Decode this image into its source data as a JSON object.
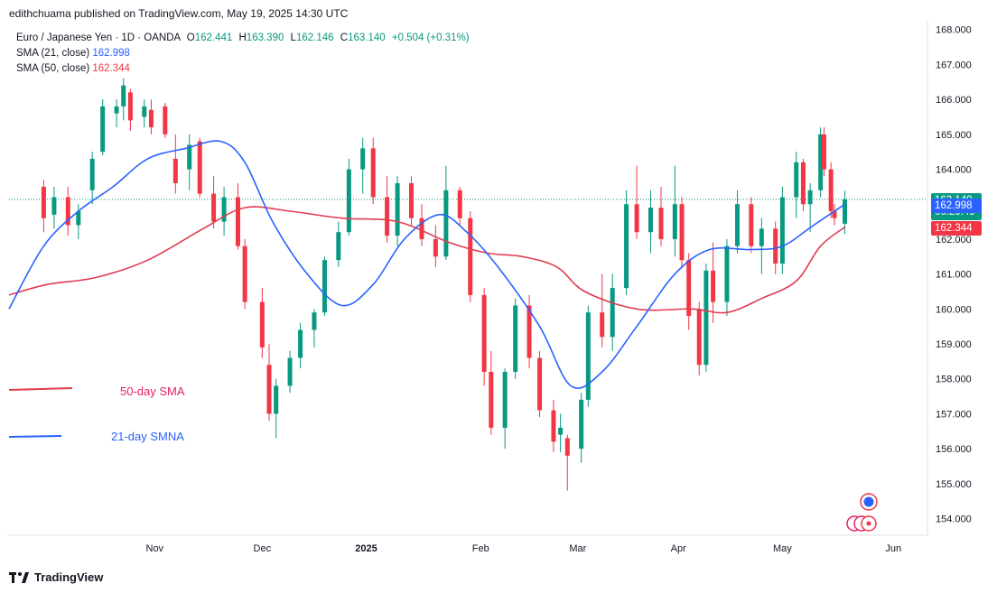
{
  "header": {
    "published_by": "edithchuama published on TradingView.com, May 19, 2025 14:30 UTC"
  },
  "legend": {
    "symbol": "Euro / Japanese Yen · 1D · OANDA",
    "open_label": "O",
    "open": "162.441",
    "high_label": "H",
    "high": "163.390",
    "low_label": "L",
    "low": "162.146",
    "close_label": "C",
    "close": "163.140",
    "change": "+0.504 (+0.31%)",
    "sma21_label": "SMA (21, close)",
    "sma21_value": "162.998",
    "sma50_label": "SMA (50, close)",
    "sma50_value": "162.344"
  },
  "annotations": {
    "sma50": "50-day SMA",
    "sma21": "21-day SMNA"
  },
  "price_tags": {
    "last": "163.140",
    "countdown": "06:29:49",
    "sma21": "162.998",
    "sma50": "162.344"
  },
  "footer": {
    "brand": "TradingView"
  },
  "colors": {
    "up": "#089981",
    "down": "#f23645",
    "sma21": "#2962ff",
    "sma50": "#e03c50"
  },
  "chart_data": {
    "type": "candlestick",
    "title": "Euro / Japanese Yen · 1D · OANDA",
    "y_ticks": [
      "154.000",
      "155.000",
      "156.000",
      "157.000",
      "158.000",
      "159.000",
      "160.000",
      "161.000",
      "162.000",
      "163.000",
      "164.000",
      "165.000",
      "166.000",
      "167.000",
      "168.000"
    ],
    "ylim": [
      153.6,
      168.2
    ],
    "x_ticks": [
      "Nov",
      "Dec",
      "2025",
      "Feb",
      "Mar",
      "Apr",
      "May",
      "Jun"
    ],
    "x_tick_dates": [
      "2024-11-01",
      "2024-12-02",
      "2025-01-01",
      "2025-02-03",
      "2025-03-03",
      "2025-04-01",
      "2025-05-01",
      "2025-06-02"
    ],
    "xlim": [
      "2024-09-20",
      "2025-06-10"
    ],
    "last_price_line": 163.14,
    "sma21": [
      {
        "d": "2024-09-20",
        "v": 160.0
      },
      {
        "d": "2024-09-30",
        "v": 161.8
      },
      {
        "d": "2024-10-10",
        "v": 162.8
      },
      {
        "d": "2024-10-20",
        "v": 163.5
      },
      {
        "d": "2024-10-30",
        "v": 164.3
      },
      {
        "d": "2024-11-10",
        "v": 164.6
      },
      {
        "d": "2024-11-20",
        "v": 164.8
      },
      {
        "d": "2024-11-27",
        "v": 164.2
      },
      {
        "d": "2024-12-05",
        "v": 162.5
      },
      {
        "d": "2024-12-15",
        "v": 161.0
      },
      {
        "d": "2024-12-25",
        "v": 160.1
      },
      {
        "d": "2025-01-03",
        "v": 160.7
      },
      {
        "d": "2025-01-12",
        "v": 162.0
      },
      {
        "d": "2025-01-22",
        "v": 162.7
      },
      {
        "d": "2025-01-30",
        "v": 162.2
      },
      {
        "d": "2025-02-08",
        "v": 161.2
      },
      {
        "d": "2025-02-20",
        "v": 159.5
      },
      {
        "d": "2025-03-01",
        "v": 157.8
      },
      {
        "d": "2025-03-10",
        "v": 158.2
      },
      {
        "d": "2025-03-20",
        "v": 159.5
      },
      {
        "d": "2025-03-31",
        "v": 161.0
      },
      {
        "d": "2025-04-10",
        "v": 161.7
      },
      {
        "d": "2025-04-22",
        "v": 161.7
      },
      {
        "d": "2025-05-01",
        "v": 161.8
      },
      {
        "d": "2025-05-10",
        "v": 162.4
      },
      {
        "d": "2025-05-19",
        "v": 162.998
      }
    ],
    "sma50": [
      {
        "d": "2024-09-20",
        "v": 160.4
      },
      {
        "d": "2024-10-01",
        "v": 160.7
      },
      {
        "d": "2024-10-15",
        "v": 160.9
      },
      {
        "d": "2024-10-30",
        "v": 161.4
      },
      {
        "d": "2024-11-15",
        "v": 162.3
      },
      {
        "d": "2024-11-27",
        "v": 162.9
      },
      {
        "d": "2024-12-10",
        "v": 162.8
      },
      {
        "d": "2024-12-25",
        "v": 162.6
      },
      {
        "d": "2025-01-10",
        "v": 162.5
      },
      {
        "d": "2025-01-25",
        "v": 161.9
      },
      {
        "d": "2025-02-05",
        "v": 161.6
      },
      {
        "d": "2025-02-15",
        "v": 161.5
      },
      {
        "d": "2025-02-25",
        "v": 161.2
      },
      {
        "d": "2025-03-05",
        "v": 160.5
      },
      {
        "d": "2025-03-20",
        "v": 160.0
      },
      {
        "d": "2025-04-05",
        "v": 160.0
      },
      {
        "d": "2025-04-15",
        "v": 159.9
      },
      {
        "d": "2025-04-25",
        "v": 160.3
      },
      {
        "d": "2025-05-05",
        "v": 160.8
      },
      {
        "d": "2025-05-12",
        "v": 161.8
      },
      {
        "d": "2025-05-19",
        "v": 162.344
      }
    ],
    "candles": [
      {
        "d": "2024-09-30",
        "o": 163.5,
        "h": 163.7,
        "l": 162.2,
        "c": 162.6
      },
      {
        "d": "2024-10-03",
        "o": 162.7,
        "h": 163.5,
        "l": 162.3,
        "c": 163.2
      },
      {
        "d": "2024-10-07",
        "o": 163.2,
        "h": 163.5,
        "l": 162.1,
        "c": 162.4
      },
      {
        "d": "2024-10-10",
        "o": 162.4,
        "h": 163.0,
        "l": 162.0,
        "c": 162.8
      },
      {
        "d": "2024-10-14",
        "o": 163.4,
        "h": 164.5,
        "l": 163.0,
        "c": 164.3
      },
      {
        "d": "2024-10-17",
        "o": 164.5,
        "h": 166.0,
        "l": 164.4,
        "c": 165.8
      },
      {
        "d": "2024-10-21",
        "o": 165.6,
        "h": 166.0,
        "l": 165.2,
        "c": 165.8
      },
      {
        "d": "2024-10-23",
        "o": 165.8,
        "h": 166.6,
        "l": 165.4,
        "c": 166.4
      },
      {
        "d": "2024-10-25",
        "o": 166.2,
        "h": 166.3,
        "l": 165.1,
        "c": 165.4
      },
      {
        "d": "2024-10-29",
        "o": 165.5,
        "h": 166.0,
        "l": 165.2,
        "c": 165.8
      },
      {
        "d": "2024-10-31",
        "o": 165.7,
        "h": 166.0,
        "l": 165.0,
        "c": 165.2
      },
      {
        "d": "2024-11-04",
        "o": 165.8,
        "h": 165.9,
        "l": 164.9,
        "c": 165.0
      },
      {
        "d": "2024-11-07",
        "o": 164.3,
        "h": 165.0,
        "l": 163.3,
        "c": 163.6
      },
      {
        "d": "2024-11-11",
        "o": 164.0,
        "h": 165.0,
        "l": 163.4,
        "c": 164.7
      },
      {
        "d": "2024-11-14",
        "o": 164.8,
        "h": 164.9,
        "l": 163.2,
        "c": 163.3
      },
      {
        "d": "2024-11-18",
        "o": 163.3,
        "h": 163.8,
        "l": 162.3,
        "c": 162.5
      },
      {
        "d": "2024-11-21",
        "o": 162.5,
        "h": 163.5,
        "l": 162.1,
        "c": 163.2
      },
      {
        "d": "2024-11-25",
        "o": 163.2,
        "h": 163.6,
        "l": 161.7,
        "c": 161.8
      },
      {
        "d": "2024-11-27",
        "o": 161.8,
        "h": 162.0,
        "l": 160.0,
        "c": 160.2
      },
      {
        "d": "2024-12-02",
        "o": 160.2,
        "h": 160.6,
        "l": 158.6,
        "c": 158.9
      },
      {
        "d": "2024-12-04",
        "o": 158.4,
        "h": 159.0,
        "l": 156.8,
        "c": 157.0
      },
      {
        "d": "2024-12-06",
        "o": 157.0,
        "h": 158.0,
        "l": 156.3,
        "c": 157.8
      },
      {
        "d": "2024-12-10",
        "o": 157.8,
        "h": 158.8,
        "l": 157.6,
        "c": 158.6
      },
      {
        "d": "2024-12-13",
        "o": 158.6,
        "h": 159.6,
        "l": 158.3,
        "c": 159.4
      },
      {
        "d": "2024-12-17",
        "o": 159.4,
        "h": 160.0,
        "l": 158.9,
        "c": 159.9
      },
      {
        "d": "2024-12-20",
        "o": 159.9,
        "h": 161.5,
        "l": 159.8,
        "c": 161.4
      },
      {
        "d": "2024-12-24",
        "o": 161.4,
        "h": 162.5,
        "l": 161.2,
        "c": 162.2
      },
      {
        "d": "2024-12-27",
        "o": 162.2,
        "h": 164.3,
        "l": 162.1,
        "c": 164.0
      },
      {
        "d": "2024-12-31",
        "o": 164.0,
        "h": 164.9,
        "l": 163.3,
        "c": 164.6
      },
      {
        "d": "2025-01-03",
        "o": 164.6,
        "h": 164.9,
        "l": 163.0,
        "c": 163.2
      },
      {
        "d": "2025-01-07",
        "o": 163.2,
        "h": 163.8,
        "l": 161.9,
        "c": 162.1
      },
      {
        "d": "2025-01-10",
        "o": 162.1,
        "h": 163.8,
        "l": 161.8,
        "c": 163.6
      },
      {
        "d": "2025-01-14",
        "o": 163.6,
        "h": 163.8,
        "l": 162.4,
        "c": 162.6
      },
      {
        "d": "2025-01-17",
        "o": 162.6,
        "h": 163.0,
        "l": 161.8,
        "c": 162.0
      },
      {
        "d": "2025-01-21",
        "o": 162.0,
        "h": 162.4,
        "l": 161.2,
        "c": 161.5
      },
      {
        "d": "2025-01-24",
        "o": 161.5,
        "h": 164.1,
        "l": 161.4,
        "c": 163.4
      },
      {
        "d": "2025-01-28",
        "o": 163.4,
        "h": 163.5,
        "l": 162.4,
        "c": 162.6
      },
      {
        "d": "2025-01-31",
        "o": 162.6,
        "h": 162.8,
        "l": 160.2,
        "c": 160.4
      },
      {
        "d": "2025-02-04",
        "o": 160.4,
        "h": 160.6,
        "l": 157.8,
        "c": 158.2
      },
      {
        "d": "2025-02-06",
        "o": 158.2,
        "h": 158.8,
        "l": 156.4,
        "c": 156.6
      },
      {
        "d": "2025-02-10",
        "o": 156.6,
        "h": 158.3,
        "l": 156.0,
        "c": 158.2
      },
      {
        "d": "2025-02-13",
        "o": 158.2,
        "h": 160.3,
        "l": 158.0,
        "c": 160.1
      },
      {
        "d": "2025-02-17",
        "o": 160.1,
        "h": 160.4,
        "l": 158.3,
        "c": 158.6
      },
      {
        "d": "2025-02-20",
        "o": 158.6,
        "h": 158.8,
        "l": 156.9,
        "c": 157.1
      },
      {
        "d": "2025-02-24",
        "o": 157.1,
        "h": 157.4,
        "l": 155.9,
        "c": 156.2
      },
      {
        "d": "2025-02-26",
        "o": 156.4,
        "h": 157.0,
        "l": 155.9,
        "c": 156.6
      },
      {
        "d": "2025-02-28",
        "o": 156.3,
        "h": 156.4,
        "l": 154.8,
        "c": 155.8
      },
      {
        "d": "2025-03-04",
        "o": 156.0,
        "h": 157.6,
        "l": 155.6,
        "c": 157.4
      },
      {
        "d": "2025-03-06",
        "o": 157.4,
        "h": 160.1,
        "l": 157.2,
        "c": 159.9
      },
      {
        "d": "2025-03-10",
        "o": 159.9,
        "h": 161.0,
        "l": 158.9,
        "c": 159.2
      },
      {
        "d": "2025-03-13",
        "o": 159.2,
        "h": 161.0,
        "l": 158.8,
        "c": 160.6
      },
      {
        "d": "2025-03-17",
        "o": 160.6,
        "h": 163.4,
        "l": 160.4,
        "c": 163.0
      },
      {
        "d": "2025-03-20",
        "o": 163.0,
        "h": 164.1,
        "l": 162.0,
        "c": 162.2
      },
      {
        "d": "2025-03-24",
        "o": 162.2,
        "h": 163.4,
        "l": 161.6,
        "c": 162.9
      },
      {
        "d": "2025-03-27",
        "o": 162.9,
        "h": 163.5,
        "l": 161.8,
        "c": 162.0
      },
      {
        "d": "2025-03-31",
        "o": 162.0,
        "h": 164.1,
        "l": 161.5,
        "c": 163.0
      },
      {
        "d": "2025-04-02",
        "o": 163.0,
        "h": 163.2,
        "l": 161.2,
        "c": 161.4
      },
      {
        "d": "2025-04-04",
        "o": 161.4,
        "h": 161.6,
        "l": 159.4,
        "c": 159.8
      },
      {
        "d": "2025-04-07",
        "o": 160.0,
        "h": 160.2,
        "l": 158.1,
        "c": 158.4
      },
      {
        "d": "2025-04-09",
        "o": 158.4,
        "h": 161.3,
        "l": 158.2,
        "c": 161.1
      },
      {
        "d": "2025-04-11",
        "o": 161.1,
        "h": 161.9,
        "l": 159.6,
        "c": 160.2
      },
      {
        "d": "2025-04-15",
        "o": 160.2,
        "h": 162.0,
        "l": 159.8,
        "c": 161.8
      },
      {
        "d": "2025-04-18",
        "o": 161.8,
        "h": 163.4,
        "l": 161.6,
        "c": 163.0
      },
      {
        "d": "2025-04-22",
        "o": 163.0,
        "h": 163.2,
        "l": 161.6,
        "c": 161.8
      },
      {
        "d": "2025-04-25",
        "o": 161.8,
        "h": 162.6,
        "l": 161.0,
        "c": 162.3
      },
      {
        "d": "2025-04-29",
        "o": 162.3,
        "h": 162.5,
        "l": 161.0,
        "c": 161.3
      },
      {
        "d": "2025-05-01",
        "o": 161.3,
        "h": 163.5,
        "l": 161.0,
        "c": 163.2
      },
      {
        "d": "2025-05-05",
        "o": 163.2,
        "h": 164.5,
        "l": 162.6,
        "c": 164.2
      },
      {
        "d": "2025-05-07",
        "o": 164.2,
        "h": 164.3,
        "l": 162.8,
        "c": 163.0
      },
      {
        "d": "2025-05-09",
        "o": 163.0,
        "h": 163.6,
        "l": 162.2,
        "c": 163.4
      },
      {
        "d": "2025-05-12",
        "o": 163.4,
        "h": 165.2,
        "l": 163.2,
        "c": 165.0
      },
      {
        "d": "2025-05-13",
        "o": 165.0,
        "h": 165.2,
        "l": 163.8,
        "c": 164.0
      },
      {
        "d": "2025-05-15",
        "o": 164.0,
        "h": 164.2,
        "l": 162.6,
        "c": 162.8
      },
      {
        "d": "2025-05-16",
        "o": 162.8,
        "h": 163.0,
        "l": 162.4,
        "c": 162.6
      },
      {
        "d": "2025-05-19",
        "o": 162.441,
        "h": 163.39,
        "l": 162.146,
        "c": 163.14
      }
    ]
  }
}
